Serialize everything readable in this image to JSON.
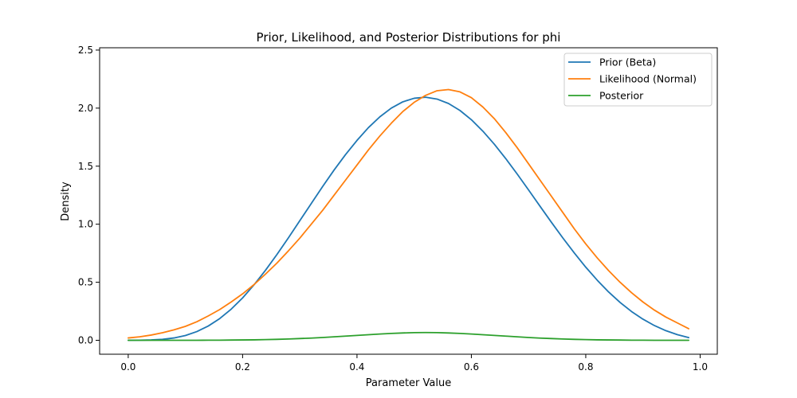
{
  "chart_data": {
    "type": "line",
    "title": "Prior, Likelihood, and Posterior Distributions for phi",
    "xlabel": "Parameter Value",
    "ylabel": "Density",
    "xlim": [
      -0.05,
      1.03
    ],
    "ylim": [
      -0.12,
      2.52
    ],
    "xticks": [
      0.0,
      0.2,
      0.4,
      0.6,
      0.8,
      1.0
    ],
    "xtick_labels": [
      "0.0",
      "0.2",
      "0.4",
      "0.6",
      "0.8",
      "1.0"
    ],
    "yticks": [
      0.0,
      0.5,
      1.0,
      1.5,
      2.0,
      2.5
    ],
    "ytick_labels": [
      "0.0",
      "0.5",
      "1.0",
      "1.5",
      "2.0",
      "2.5"
    ],
    "grid": false,
    "legend_position": "top-right",
    "x": [
      0.0,
      0.02,
      0.04,
      0.06,
      0.08,
      0.1,
      0.12,
      0.14,
      0.16,
      0.18,
      0.2,
      0.22,
      0.24,
      0.26,
      0.28,
      0.3,
      0.32,
      0.34,
      0.36,
      0.38,
      0.4,
      0.42,
      0.44,
      0.46,
      0.48,
      0.5,
      0.52,
      0.54,
      0.56,
      0.58,
      0.6,
      0.62,
      0.64,
      0.66,
      0.68,
      0.7,
      0.72,
      0.74,
      0.76,
      0.78,
      0.8,
      0.82,
      0.84,
      0.86,
      0.88,
      0.9,
      0.92,
      0.94,
      0.96,
      0.98
    ],
    "series": [
      {
        "name": "Prior (Beta)",
        "color": "#1f77b4",
        "values": [
          0.0,
          0.001,
          0.003,
          0.008,
          0.02,
          0.041,
          0.075,
          0.123,
          0.187,
          0.268,
          0.365,
          0.478,
          0.603,
          0.739,
          0.882,
          1.03,
          1.178,
          1.325,
          1.467,
          1.6,
          1.722,
          1.832,
          1.925,
          2.0,
          2.054,
          2.085,
          2.094,
          2.078,
          2.04,
          1.98,
          1.9,
          1.802,
          1.69,
          1.566,
          1.433,
          1.295,
          1.155,
          1.016,
          0.881,
          0.752,
          0.63,
          0.518,
          0.416,
          0.326,
          0.248,
          0.182,
          0.127,
          0.083,
          0.049,
          0.023
        ]
      },
      {
        "name": "Likelihood (Normal)",
        "color": "#ff7f0e",
        "values": [
          0.02,
          0.03,
          0.045,
          0.065,
          0.09,
          0.12,
          0.16,
          0.21,
          0.265,
          0.33,
          0.4,
          0.48,
          0.57,
          0.665,
          0.77,
          0.88,
          1.0,
          1.12,
          1.25,
          1.38,
          1.51,
          1.64,
          1.76,
          1.87,
          1.97,
          2.05,
          2.11,
          2.15,
          2.16,
          2.14,
          2.09,
          2.01,
          1.91,
          1.79,
          1.66,
          1.52,
          1.38,
          1.24,
          1.1,
          0.96,
          0.83,
          0.71,
          0.6,
          0.5,
          0.41,
          0.33,
          0.26,
          0.2,
          0.15,
          0.1
        ]
      },
      {
        "name": "Posterior",
        "color": "#2ca02c",
        "values": [
          0.0,
          0.0,
          0.0,
          0.0,
          0.0,
          0.0,
          0.0,
          0.001,
          0.001,
          0.002,
          0.003,
          0.004,
          0.006,
          0.008,
          0.011,
          0.015,
          0.019,
          0.024,
          0.03,
          0.036,
          0.042,
          0.048,
          0.054,
          0.059,
          0.063,
          0.066,
          0.067,
          0.066,
          0.063,
          0.059,
          0.054,
          0.048,
          0.042,
          0.036,
          0.03,
          0.024,
          0.019,
          0.015,
          0.011,
          0.008,
          0.006,
          0.004,
          0.003,
          0.002,
          0.001,
          0.001,
          0.0,
          0.0,
          0.0,
          0.0
        ]
      }
    ]
  }
}
